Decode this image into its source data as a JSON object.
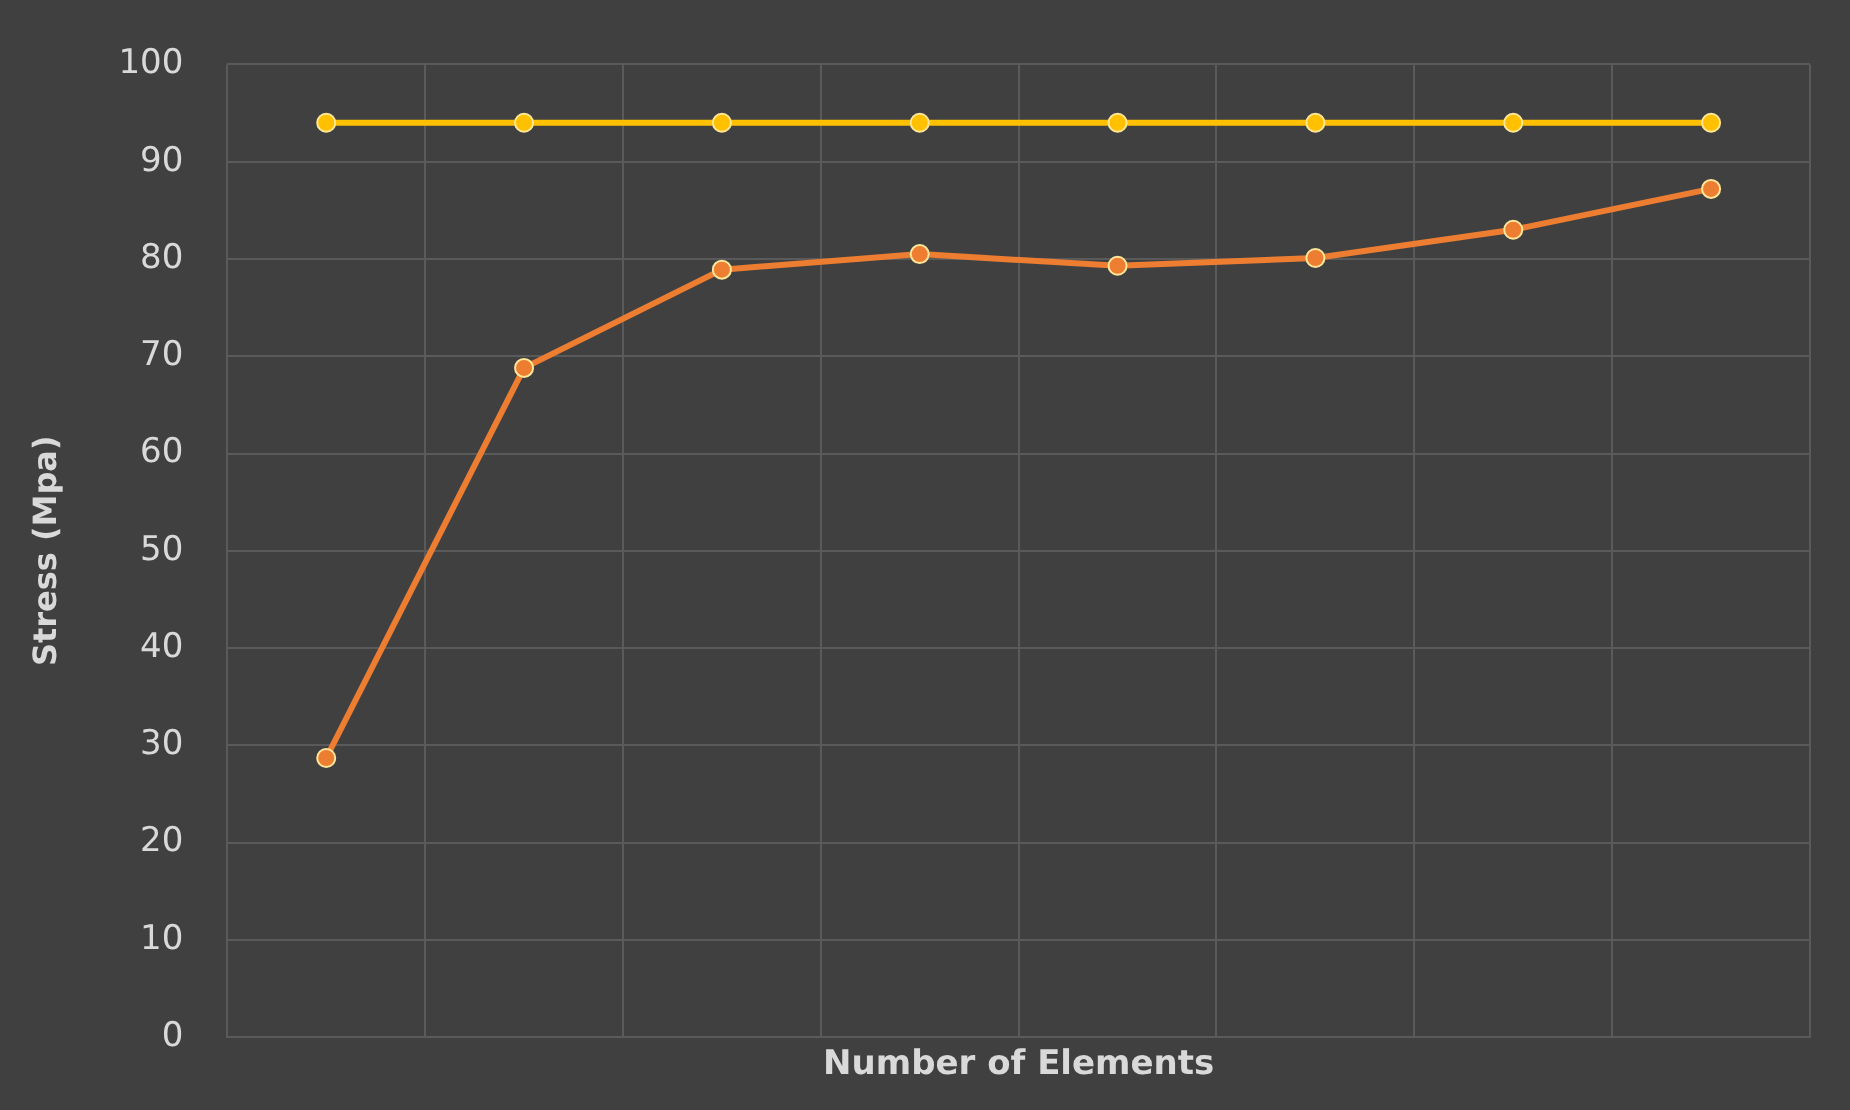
{
  "chart_data": {
    "type": "line",
    "xlabel": "Number of Elements",
    "ylabel": "Stress (Mpa)",
    "categories": [
      null,
      null,
      null,
      null,
      null,
      null,
      null,
      null
    ],
    "series": [
      {
        "color": "#ffc000",
        "values": [
          94,
          94,
          94,
          94,
          94,
          94,
          94,
          94
        ]
      },
      {
        "color": "#ed7d31",
        "values": [
          28.7,
          68.8,
          78.9,
          80.5,
          79.3,
          80.1,
          83,
          87.2
        ]
      }
    ],
    "ylim": [
      0,
      100
    ],
    "yticks": [
      0,
      10,
      20,
      30,
      40,
      50,
      60,
      70,
      80,
      90,
      100
    ],
    "grid": true,
    "legend": false,
    "tick_labels": "y",
    "marker": "circle",
    "line_style": "solid"
  }
}
